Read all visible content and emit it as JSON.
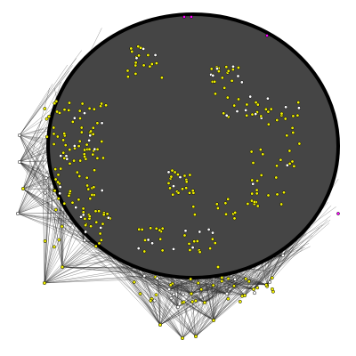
{
  "colors": {
    "background": "#ffffff",
    "disk_fill": "#454545",
    "disk_outline": "#000000",
    "edge": "#2a2a2a",
    "node_primary": "#f2f200",
    "node_secondary": "#ffffff",
    "node_accent": "#ff00ff",
    "node_stroke": "#000000"
  }
}
